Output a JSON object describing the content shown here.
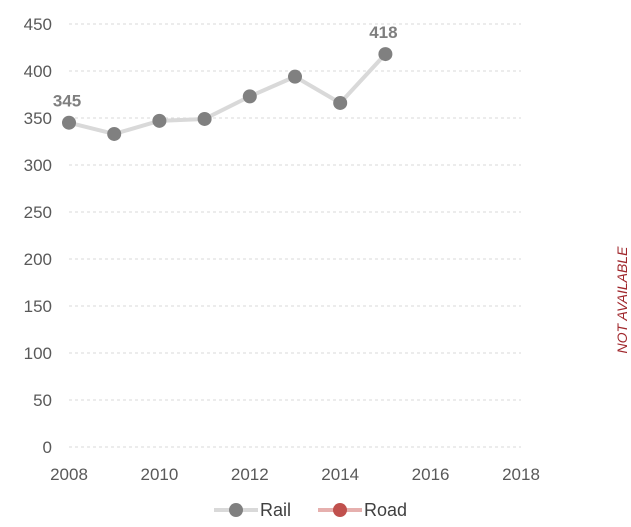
{
  "chart_data": {
    "type": "line",
    "title": "",
    "xlabel": "",
    "ylabel": "",
    "x_ticks": [
      2008,
      2010,
      2012,
      2014,
      2016,
      2018
    ],
    "y_ticks": [
      0,
      50,
      100,
      150,
      200,
      250,
      300,
      350,
      400,
      450
    ],
    "xlim": [
      2008,
      2018
    ],
    "ylim": [
      0,
      450
    ],
    "grid": "horizontal dashed",
    "legend_position": "bottom",
    "series": [
      {
        "name": "Rail",
        "color": "#808080",
        "line_color": "#d9d9d9",
        "x": [
          2008,
          2009,
          2010,
          2011,
          2012,
          2013,
          2014,
          2015
        ],
        "values": [
          345,
          333,
          347,
          349,
          373,
          394,
          366,
          418
        ],
        "data_labels": [
          {
            "x": 2008,
            "text": "345"
          },
          {
            "x": 2015,
            "text": "418"
          }
        ]
      },
      {
        "name": "Road",
        "color": "#c0504d",
        "line_color": "#e6b0ae",
        "x": [],
        "values": []
      }
    ],
    "side_annotation": "NOT AVAILABLE"
  }
}
